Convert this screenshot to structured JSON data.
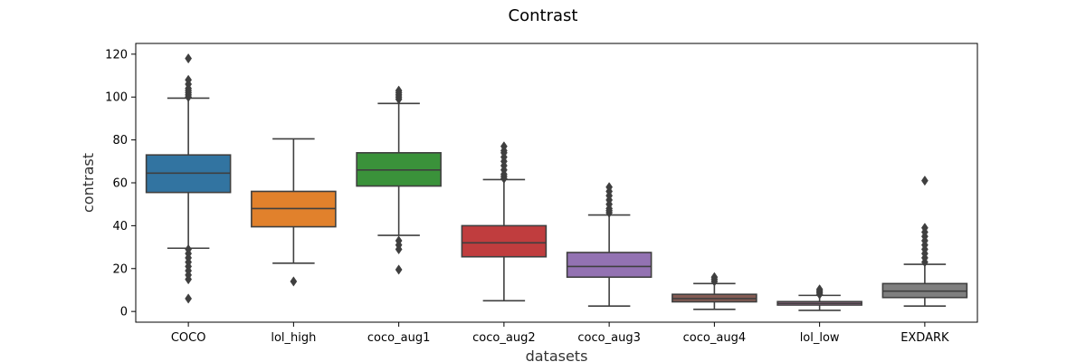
{
  "chart_data": {
    "type": "box",
    "title": "Contrast",
    "xlabel": "datasets",
    "ylabel": "contrast",
    "ylim": [
      -5,
      125
    ],
    "yticks": [
      0,
      20,
      40,
      60,
      80,
      100,
      120
    ],
    "grid": false,
    "categories": [
      "COCO",
      "lol_high",
      "coco_aug1",
      "coco_aug2",
      "coco_aug3",
      "coco_aug4",
      "lol_low",
      "EXDARK"
    ],
    "series": [
      {
        "color": "#3274a1",
        "whisker_low": 29.5,
        "q1": 55.5,
        "median": 64.5,
        "q3": 73,
        "whisker_high": 99.5,
        "outliers": [
          6,
          15,
          17,
          19,
          21,
          23,
          25,
          27,
          29,
          100,
          101,
          102,
          103,
          104,
          106,
          108,
          118
        ]
      },
      {
        "color": "#e1812c",
        "whisker_low": 22.5,
        "q1": 39.5,
        "median": 48,
        "q3": 56,
        "whisker_high": 80.5,
        "outliers": [
          14
        ]
      },
      {
        "color": "#3a923a",
        "whisker_low": 35.5,
        "q1": 58.5,
        "median": 66,
        "q3": 74,
        "whisker_high": 97,
        "outliers": [
          19.5,
          29,
          31,
          33,
          99,
          100,
          101,
          102,
          103
        ]
      },
      {
        "color": "#c03d3e",
        "whisker_low": 5,
        "q1": 25.5,
        "median": 32,
        "q3": 40,
        "whisker_high": 61.5,
        "outliers": [
          62,
          63,
          64,
          66,
          68,
          70,
          72,
          74,
          75,
          77
        ]
      },
      {
        "color": "#9372b2",
        "whisker_low": 2.5,
        "q1": 16,
        "median": 21,
        "q3": 27.5,
        "whisker_high": 45,
        "outliers": [
          46,
          47,
          48,
          50,
          52,
          54,
          56,
          58
        ]
      },
      {
        "color": "#845b53",
        "whisker_low": 1,
        "q1": 4.5,
        "median": 6,
        "q3": 8,
        "whisker_high": 13,
        "outliers": [
          14,
          15,
          16
        ]
      },
      {
        "color": "#d684bd",
        "whisker_low": 0.5,
        "q1": 3,
        "median": 3.8,
        "q3": 4.6,
        "whisker_high": 7.5,
        "outliers": [
          8,
          8.8,
          9.5,
          10.3
        ]
      },
      {
        "color": "#7f7f7f",
        "whisker_low": 2.5,
        "q1": 6.5,
        "median": 9.5,
        "q3": 13,
        "whisker_high": 22,
        "outliers": [
          23,
          25,
          27,
          29,
          31,
          33,
          35,
          37,
          39,
          61
        ]
      }
    ]
  }
}
